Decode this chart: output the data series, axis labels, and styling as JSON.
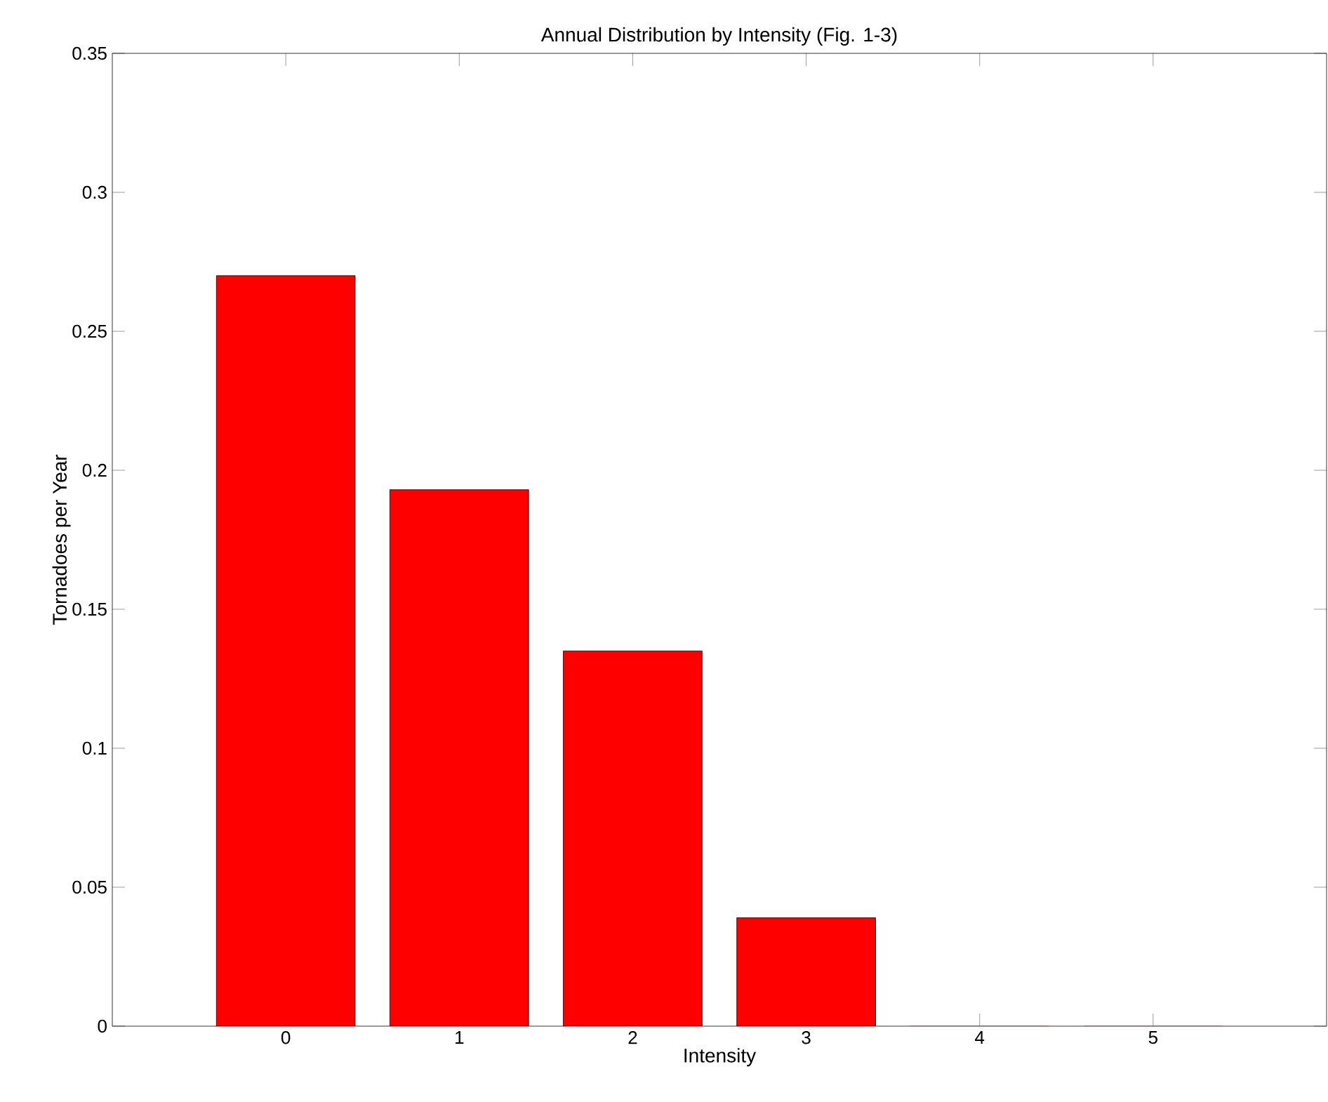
{
  "chart_data": {
    "type": "bar",
    "title": "Annual Distribution by Intensity (Fig. 1-3)",
    "xlabel": "Intensity",
    "ylabel": "Tornadoes per Year",
    "x": [
      0,
      1,
      2,
      3,
      4,
      5
    ],
    "values": [
      0.27,
      0.193,
      0.135,
      0.039,
      0,
      0
    ],
    "color": "#ff0000",
    "xlim": [
      -1,
      6
    ],
    "xticks": [
      0,
      1,
      2,
      3,
      4,
      5
    ],
    "ylim": [
      0,
      0.35
    ],
    "yticks": [
      0,
      0.05,
      0.1,
      0.15,
      0.2,
      0.25,
      0.3,
      0.35
    ],
    "grid": false
  }
}
